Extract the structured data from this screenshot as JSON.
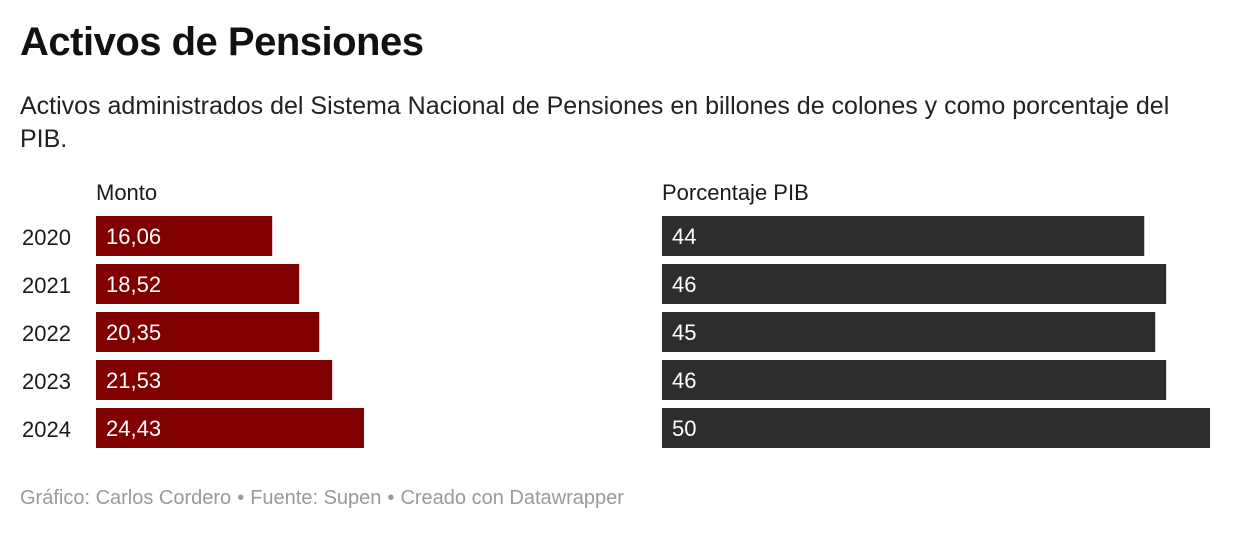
{
  "title": "Activos de Pensiones",
  "subtitle": "Activos administrados del Sistema Nacional de Pensiones en billones de colones y como porcentaje del PIB.",
  "footer": {
    "credit": "Gráfico: Carlos Cordero",
    "source": "Fuente: Supen",
    "tool": "Creado con Datawrapper",
    "separator": "•"
  },
  "colors": {
    "monto": "#800000",
    "pib": "#2d2d2d",
    "label_text": "#ffffff"
  },
  "chart_data": {
    "type": "bar",
    "orientation": "horizontal",
    "categories": [
      "2020",
      "2021",
      "2022",
      "2023",
      "2024"
    ],
    "series": [
      {
        "name": "Monto",
        "values": [
          16.06,
          18.52,
          20.35,
          21.53,
          24.43
        ],
        "labels": [
          "16,06",
          "18,52",
          "20,35",
          "21,53",
          "24,43"
        ]
      },
      {
        "name": "Porcentaje PIB",
        "values": [
          44,
          46,
          45,
          46,
          50
        ],
        "labels": [
          "44",
          "46",
          "45",
          "46",
          "50"
        ]
      }
    ],
    "grid": false,
    "legend": "none"
  }
}
